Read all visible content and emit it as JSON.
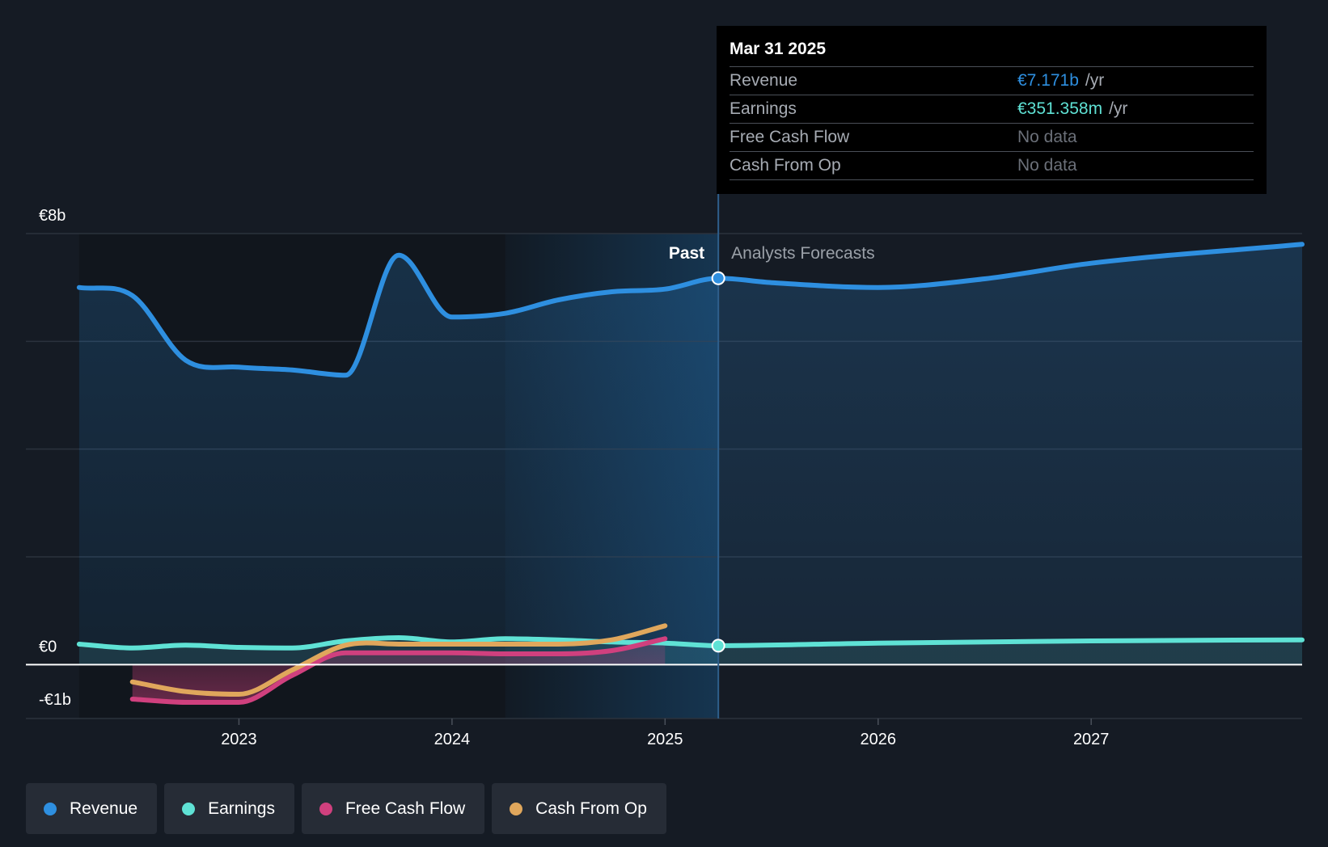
{
  "chart_data": {
    "type": "line",
    "y_tick_labels": {
      "top": "€8b",
      "zero": "€0",
      "bottom": "-€1b"
    },
    "ylim": [
      -1,
      8
    ],
    "x_ticks": [
      {
        "year": 2023,
        "label": "2023"
      },
      {
        "year": 2024,
        "label": "2024"
      },
      {
        "year": 2025,
        "label": "2025"
      },
      {
        "year": 2026,
        "label": "2026"
      },
      {
        "year": 2027,
        "label": "2027"
      }
    ],
    "xlim": [
      2022.0,
      2027.99
    ],
    "past_label": "Past",
    "forecast_label": "Analysts Forecasts",
    "present_marker": 2025.25,
    "highlight_start": 2024.25,
    "series": [
      {
        "name": "Revenue",
        "color": "#2e8fe0",
        "fill": true,
        "values": [
          [
            2022.25,
            7.0
          ],
          [
            2022.5,
            6.85
          ],
          [
            2022.75,
            5.65
          ],
          [
            2023.0,
            5.52
          ],
          [
            2023.25,
            5.47
          ],
          [
            2023.5,
            5.37
          ],
          [
            2023.75,
            7.6
          ],
          [
            2024.0,
            6.45
          ],
          [
            2024.25,
            6.52
          ],
          [
            2024.5,
            6.77
          ],
          [
            2024.75,
            6.92
          ],
          [
            2025.0,
            6.97
          ],
          [
            2025.25,
            7.171
          ],
          [
            2025.5,
            7.09
          ],
          [
            2026.0,
            7.0
          ],
          [
            2026.5,
            7.16
          ],
          [
            2027.0,
            7.45
          ],
          [
            2027.99,
            7.8
          ]
        ]
      },
      {
        "name": "Earnings",
        "color": "#5fe2d5",
        "fill": true,
        "values": [
          [
            2022.25,
            0.38
          ],
          [
            2022.5,
            0.31
          ],
          [
            2022.75,
            0.36
          ],
          [
            2023.0,
            0.32
          ],
          [
            2023.25,
            0.31
          ],
          [
            2023.5,
            0.44
          ],
          [
            2023.75,
            0.5
          ],
          [
            2024.0,
            0.42
          ],
          [
            2024.25,
            0.48
          ],
          [
            2024.5,
            0.46
          ],
          [
            2024.75,
            0.42
          ],
          [
            2025.0,
            0.4
          ],
          [
            2025.25,
            0.351358
          ],
          [
            2026.0,
            0.4
          ],
          [
            2027.0,
            0.44
          ],
          [
            2027.99,
            0.46
          ]
        ]
      },
      {
        "name": "Free Cash Flow",
        "color": "#d0407e",
        "fill": true,
        "values": [
          [
            2022.5,
            -0.64
          ],
          [
            2022.75,
            -0.7
          ],
          [
            2023.0,
            -0.7
          ],
          [
            2023.25,
            -0.2
          ],
          [
            2023.5,
            0.22
          ],
          [
            2023.75,
            0.22
          ],
          [
            2024.0,
            0.22
          ],
          [
            2024.25,
            0.2
          ],
          [
            2024.5,
            0.2
          ],
          [
            2024.75,
            0.26
          ],
          [
            2025.0,
            0.48
          ]
        ]
      },
      {
        "name": "Cash From Op",
        "color": "#e0a75c",
        "fill": false,
        "values": [
          [
            2022.5,
            -0.32
          ],
          [
            2022.75,
            -0.5
          ],
          [
            2023.0,
            -0.55
          ],
          [
            2023.25,
            -0.1
          ],
          [
            2023.5,
            0.36
          ],
          [
            2023.75,
            0.38
          ],
          [
            2024.0,
            0.38
          ],
          [
            2024.25,
            0.38
          ],
          [
            2024.5,
            0.38
          ],
          [
            2024.75,
            0.46
          ],
          [
            2025.0,
            0.72
          ]
        ]
      }
    ]
  },
  "tooltip": {
    "date": "Mar 31 2025",
    "rows": [
      {
        "label": "Revenue",
        "value": "€7.171b",
        "unit": "/yr",
        "color": "#2e8fe0"
      },
      {
        "label": "Earnings",
        "value": "€351.358m",
        "unit": "/yr",
        "color": "#5fe2d5"
      },
      {
        "label": "Free Cash Flow",
        "value": "No data",
        "unit": "",
        "color": "#6b7079"
      },
      {
        "label": "Cash From Op",
        "value": "No data",
        "unit": "",
        "color": "#6b7079"
      }
    ]
  },
  "legend": [
    {
      "label": "Revenue",
      "color": "#2e8fe0"
    },
    {
      "label": "Earnings",
      "color": "#5fe2d5"
    },
    {
      "label": "Free Cash Flow",
      "color": "#d0407e"
    },
    {
      "label": "Cash From Op",
      "color": "#e0a75c"
    }
  ]
}
